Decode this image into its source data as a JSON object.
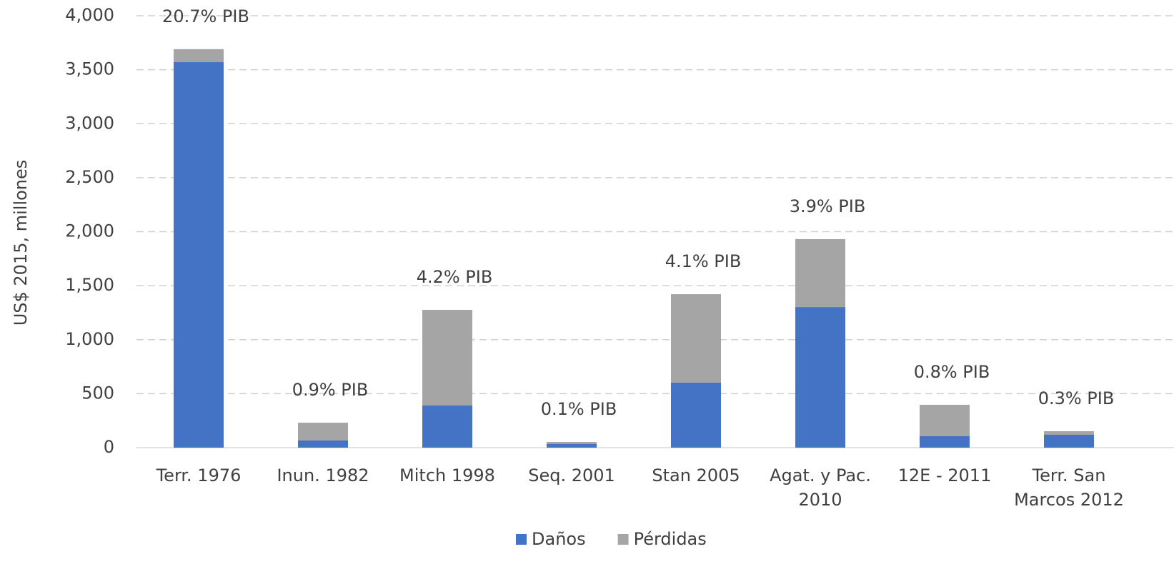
{
  "chart_data": {
    "type": "stacked_bar",
    "y_label": "US$ 2015, millones",
    "categories": [
      "Terr. 1976",
      "Inun. 1982",
      "Mitch 1998",
      "Seq. 2001",
      "Stan 2005",
      "Agat. y Pac. 2010",
      "12E - 2011",
      "Terr. San Marcos 2012"
    ],
    "annotations": [
      "20.7% PIB",
      "0.9% PIB",
      "4.2% PIB",
      "0.1% PIB",
      "4.1% PIB",
      "3.9% PIB",
      "0.8% PIB",
      "0.3% PIB"
    ],
    "series": [
      {
        "name": "Daños",
        "color": "#4472c4",
        "values": [
          3570,
          66,
          390,
          33,
          602,
          1302,
          106,
          119
        ]
      },
      {
        "name": "Pérdidas",
        "color": "#a5a5a5",
        "values": [
          120,
          165,
          886,
          20,
          819,
          629,
          291,
          33
        ]
      }
    ],
    "ylim": [
      0,
      4000
    ],
    "yticks": [
      0,
      500,
      {
        "value": 1000,
        "label": "1,000"
      },
      {
        "value": 1500,
        "label": "1,500"
      },
      {
        "value": 2000,
        "label": "2,000"
      },
      {
        "value": 2500,
        "label": "2,500"
      },
      {
        "value": 3000,
        "label": "3,000"
      },
      {
        "value": 3500,
        "label": "3,500"
      },
      {
        "value": 4000,
        "label": "4,000"
      }
    ],
    "grid": true,
    "legend": "bottom"
  }
}
